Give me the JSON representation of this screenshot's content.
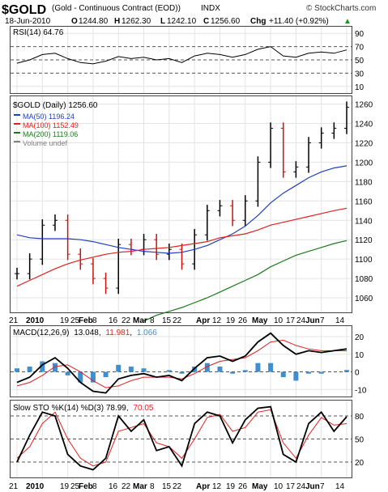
{
  "header": {
    "symbol": "$GOLD",
    "description": "(Gold - Continuous Contract (EOD))",
    "exchange": "INDX",
    "watermark": "© StockCharts.com",
    "date": "18-Jun-2010",
    "open_label": "O",
    "open": "1244.80",
    "high_label": "H",
    "high": "1262.30",
    "low_label": "L",
    "low": "1242.10",
    "close_label": "C",
    "close": "1256.60",
    "chg_label": "Chg",
    "chg": "+11.40 (+0.92%)",
    "chg_arrow": "▲"
  },
  "rsi_panel": {
    "label": "RSI(14) 64.76",
    "ticks": [
      "90",
      "70",
      "50",
      "30",
      "10"
    ],
    "tick_values": [
      90,
      70,
      50,
      30,
      10
    ],
    "overbought": 70,
    "oversold": 30
  },
  "price_panel": {
    "label": "$GOLD (Daily) 1256.60",
    "legend": [
      {
        "text": "MA(50) 1196.24",
        "color": "#1f3fbf"
      },
      {
        "text": "MA(100) 1152.49",
        "color": "#e02020"
      },
      {
        "text": "MA(200) 1119.06",
        "color": "#1a7a1a"
      },
      {
        "text": "Volume undef",
        "color": "#808080"
      }
    ],
    "ticks": [
      "1260",
      "1240",
      "1220",
      "1200",
      "1180",
      "1160",
      "1140",
      "1120",
      "1100",
      "1080",
      "1060"
    ],
    "tick_values": [
      1260,
      1240,
      1220,
      1200,
      1180,
      1160,
      1140,
      1120,
      1100,
      1080,
      1060
    ]
  },
  "macd_panel": {
    "label": "MACD(12,26,9)",
    "macd_value": "13.048",
    "signal_value": "11.981",
    "hist_value": "1.066",
    "macd_color": "#000000",
    "signal_color": "#e02020",
    "hist_color": "#3f8fd0",
    "ticks": [
      "20",
      "10",
      "0",
      "-10"
    ],
    "tick_values": [
      20,
      10,
      0,
      -10
    ]
  },
  "sto_panel": {
    "label": "Slow STO %K(14) %D(3) 78.99,",
    "d_value": "70.05",
    "ticks": [
      "80",
      "50",
      "20"
    ],
    "tick_values": [
      80,
      50,
      20
    ]
  },
  "x_axis": {
    "labels": [
      "21",
      "2010",
      "19",
      "25",
      "Feb",
      "8",
      "16",
      "22",
      "Mar",
      "8",
      "15",
      "22",
      "Apr",
      "12",
      "19",
      "26",
      "May",
      "10",
      "17",
      "24",
      "Jun",
      "7",
      "14"
    ]
  },
  "chart_data": [
    {
      "type": "line",
      "title": "RSI(14) 64.76",
      "x": [
        "2009-12-21",
        "2009-12-28",
        "2010-01-04",
        "2010-01-11",
        "2010-01-19",
        "2010-01-25",
        "2010-02-01",
        "2010-02-08",
        "2010-02-16",
        "2010-02-22",
        "2010-03-01",
        "2010-03-08",
        "2010-03-15",
        "2010-03-22",
        "2010-03-29",
        "2010-04-05",
        "2010-04-12",
        "2010-04-19",
        "2010-04-26",
        "2010-05-03",
        "2010-05-10",
        "2010-05-17",
        "2010-05-24",
        "2010-06-01",
        "2010-06-07",
        "2010-06-14",
        "2010-06-18"
      ],
      "series": [
        {
          "name": "RSI(14)",
          "values": [
            45,
            50,
            58,
            60,
            52,
            46,
            44,
            48,
            55,
            52,
            54,
            50,
            52,
            46,
            56,
            60,
            58,
            54,
            58,
            66,
            70,
            56,
            54,
            60,
            62,
            60,
            65
          ]
        }
      ],
      "ylim": [
        0,
        100
      ]
    },
    {
      "type": "line",
      "title": "$GOLD (Daily) 1256.60",
      "x": [
        "2009-12-21",
        "2009-12-28",
        "2010-01-04",
        "2010-01-11",
        "2010-01-19",
        "2010-01-25",
        "2010-02-01",
        "2010-02-08",
        "2010-02-16",
        "2010-02-22",
        "2010-03-01",
        "2010-03-08",
        "2010-03-15",
        "2010-03-22",
        "2010-03-29",
        "2010-04-05",
        "2010-04-12",
        "2010-04-19",
        "2010-04-26",
        "2010-05-03",
        "2010-05-10",
        "2010-05-17",
        "2010-05-24",
        "2010-06-01",
        "2010-06-07",
        "2010-06-14",
        "2010-06-18"
      ],
      "series": [
        {
          "name": "$GOLD",
          "values": [
            1085,
            1100,
            1135,
            1140,
            1105,
            1095,
            1080,
            1070,
            1115,
            1110,
            1120,
            1105,
            1110,
            1095,
            1125,
            1150,
            1155,
            1140,
            1160,
            1200,
            1235,
            1190,
            1195,
            1220,
            1230,
            1235,
            1256.6
          ]
        },
        {
          "name": "MA(50)",
          "values": [
            1125,
            1122,
            1121,
            1121,
            1121,
            1120,
            1118,
            1115,
            1112,
            1110,
            1108,
            1107,
            1106,
            1107,
            1110,
            1114,
            1120,
            1126,
            1134,
            1145,
            1158,
            1168,
            1176,
            1184,
            1190,
            1194,
            1196.24
          ]
        },
        {
          "name": "MA(100)",
          "values": [
            1072,
            1078,
            1084,
            1090,
            1095,
            1099,
            1102,
            1105,
            1107,
            1108,
            1110,
            1111,
            1112,
            1114,
            1116,
            1118,
            1122,
            1124,
            1126,
            1130,
            1135,
            1138,
            1141,
            1144,
            1147,
            1150,
            1152.49
          ]
        },
        {
          "name": "MA(200)",
          "values": [
            null,
            null,
            null,
            null,
            null,
            null,
            null,
            null,
            null,
            null,
            1036,
            1042,
            1046,
            1050,
            1055,
            1060,
            1066,
            1072,
            1078,
            1084,
            1092,
            1098,
            1104,
            1108,
            1112,
            1116,
            1119.06
          ]
        }
      ],
      "ylim": [
        1045,
        1268
      ]
    },
    {
      "type": "line",
      "title": "MACD(12,26,9) 13.048, 11.981, 1.066",
      "x": [
        "2009-12-21",
        "2009-12-28",
        "2010-01-04",
        "2010-01-11",
        "2010-01-19",
        "2010-01-25",
        "2010-02-01",
        "2010-02-08",
        "2010-02-16",
        "2010-02-22",
        "2010-03-01",
        "2010-03-08",
        "2010-03-15",
        "2010-03-22",
        "2010-03-29",
        "2010-04-05",
        "2010-04-12",
        "2010-04-19",
        "2010-04-26",
        "2010-05-03",
        "2010-05-10",
        "2010-05-17",
        "2010-05-24",
        "2010-06-01",
        "2010-06-07",
        "2010-06-14",
        "2010-06-18"
      ],
      "series": [
        {
          "name": "MACD",
          "values": [
            -6,
            -3,
            4,
            8,
            2,
            -6,
            -11,
            -12,
            -4,
            -2,
            -1,
            -3,
            -2,
            -5,
            2,
            8,
            9,
            6,
            9,
            17,
            22,
            15,
            10,
            12,
            11,
            12,
            13.048
          ]
        },
        {
          "name": "Signal",
          "values": [
            -8,
            -6,
            -2,
            3,
            4,
            0,
            -5,
            -9,
            -8,
            -5,
            -3,
            -3,
            -3,
            -4,
            -1,
            3,
            6,
            7,
            8,
            12,
            17,
            18,
            15,
            13,
            12,
            12,
            11.981
          ]
        },
        {
          "name": "Histogram",
          "values": [
            2,
            3,
            6,
            5,
            -2,
            -6,
            -6,
            -3,
            4,
            3,
            2,
            0,
            1,
            -1,
            3,
            5,
            3,
            -1,
            1,
            5,
            5,
            -3,
            -5,
            -1,
            -1,
            0,
            1.066
          ]
        }
      ],
      "ylim": [
        -14,
        26
      ]
    },
    {
      "type": "line",
      "title": "Slow STO %K(14) %D(3) 78.99, 70.05",
      "x": [
        "2009-12-21",
        "2009-12-28",
        "2010-01-04",
        "2010-01-11",
        "2010-01-19",
        "2010-01-25",
        "2010-02-01",
        "2010-02-08",
        "2010-02-16",
        "2010-02-22",
        "2010-03-01",
        "2010-03-08",
        "2010-03-15",
        "2010-03-22",
        "2010-03-29",
        "2010-04-05",
        "2010-04-12",
        "2010-04-19",
        "2010-04-26",
        "2010-05-03",
        "2010-05-10",
        "2010-05-17",
        "2010-05-24",
        "2010-06-01",
        "2010-06-07",
        "2010-06-14",
        "2010-06-18"
      ],
      "series": [
        {
          "name": "%K",
          "values": [
            20,
            55,
            85,
            80,
            30,
            15,
            10,
            25,
            80,
            60,
            75,
            35,
            40,
            15,
            70,
            85,
            80,
            45,
            75,
            90,
            92,
            30,
            20,
            70,
            85,
            60,
            78.99
          ]
        },
        {
          "name": "%D",
          "values": [
            25,
            40,
            70,
            85,
            50,
            25,
            15,
            20,
            60,
            65,
            70,
            45,
            40,
            25,
            50,
            78,
            82,
            60,
            65,
            85,
            88,
            45,
            25,
            55,
            78,
            68,
            70.05
          ]
        }
      ],
      "ylim": [
        0,
        100
      ]
    }
  ]
}
